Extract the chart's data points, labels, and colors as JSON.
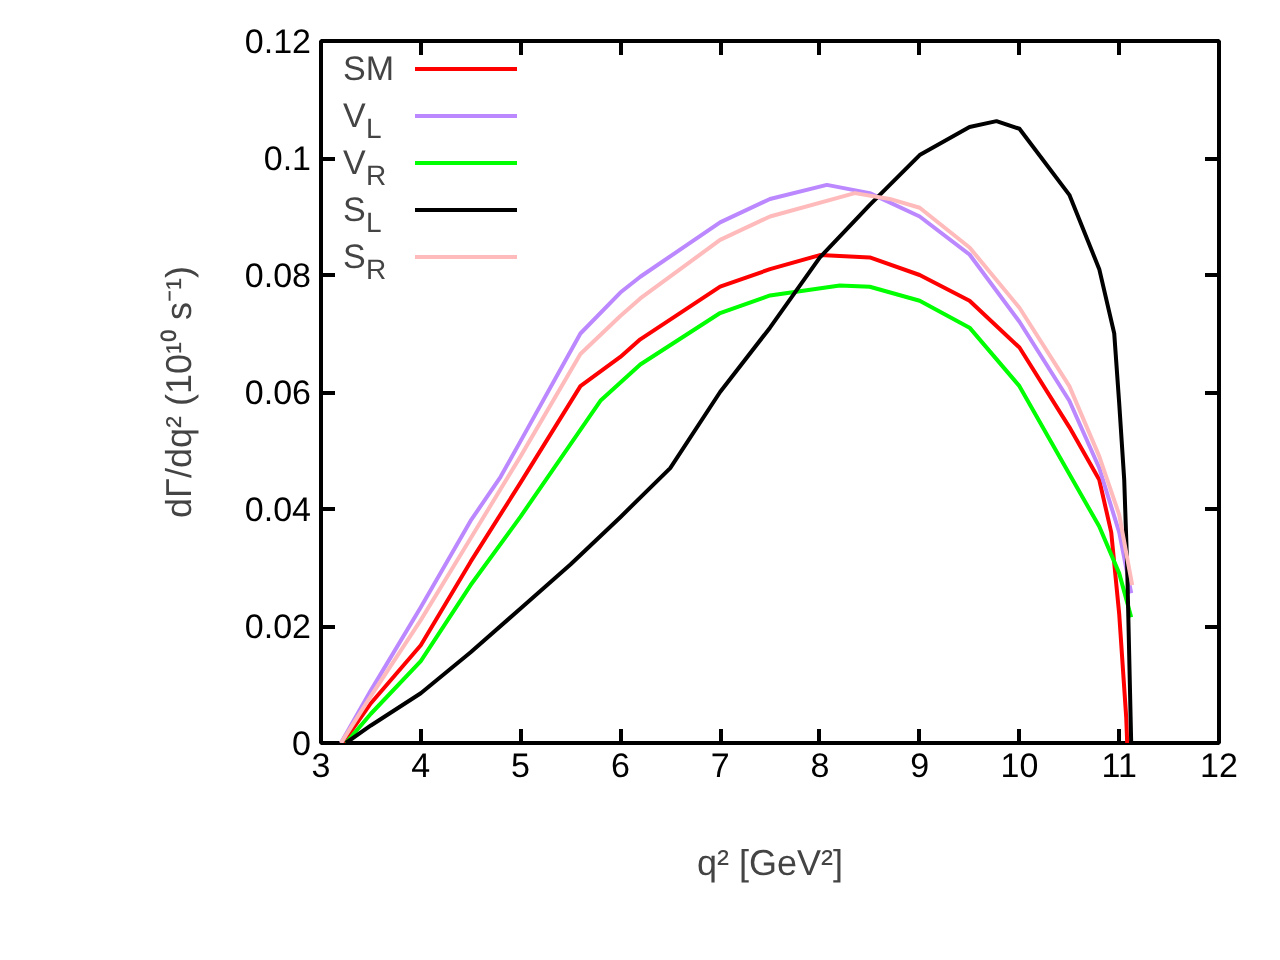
{
  "chart_data": {
    "type": "line",
    "xlabel": "q² [GeV²]",
    "ylabel": "dΓ/dq² (10¹⁰ s⁻¹)",
    "xlim": [
      3,
      12
    ],
    "ylim": [
      0,
      0.12
    ],
    "xticks": [
      3,
      4,
      5,
      6,
      7,
      8,
      9,
      10,
      11,
      12
    ],
    "yticks": [
      0,
      0.02,
      0.04,
      0.06,
      0.08,
      0.1,
      0.12
    ],
    "grid": false,
    "legend": "top left",
    "marker": "none",
    "line_style": "solid",
    "series": [
      {
        "name": "SM",
        "color": "#ff0000",
        "x": [
          3.22,
          3.5,
          4,
          4.5,
          5,
          5.6,
          6,
          6.2,
          7,
          7.5,
          8,
          8.5,
          9,
          9.5,
          10,
          10.5,
          10.8,
          10.92,
          11.0,
          11.07,
          11.08
        ],
        "values": [
          0,
          0.0068,
          0.0167,
          0.031,
          0.0445,
          0.061,
          0.066,
          0.069,
          0.078,
          0.081,
          0.0834,
          0.083,
          0.08,
          0.0756,
          0.0676,
          0.054,
          0.045,
          0.036,
          0.022,
          0.0044,
          0
        ]
      },
      {
        "name": "V$_{L}$",
        "color": "#bb88ff",
        "x": [
          3.2,
          3.5,
          4,
          4.5,
          4.8,
          5,
          5.6,
          6,
          6.2,
          7,
          7.5,
          8.07,
          8.5,
          9,
          9.5,
          10,
          10.5,
          10.8,
          11.0,
          11.12
        ],
        "values": [
          0,
          0.009,
          0.0232,
          0.038,
          0.0455,
          0.0516,
          0.07,
          0.077,
          0.0797,
          0.089,
          0.093,
          0.0954,
          0.094,
          0.09,
          0.0835,
          0.072,
          0.0585,
          0.047,
          0.036,
          0.0256
        ]
      },
      {
        "name": "V$_{R}$",
        "color": "#00ff00",
        "x": [
          3.25,
          3.5,
          4,
          4.5,
          5,
          5.8,
          6.2,
          7,
          7.5,
          8.2,
          8.5,
          9,
          9.5,
          10,
          10.5,
          10.8,
          11.0,
          11.12
        ],
        "values": [
          0,
          0.005,
          0.014,
          0.027,
          0.0387,
          0.0585,
          0.0647,
          0.0735,
          0.0765,
          0.0782,
          0.078,
          0.0756,
          0.071,
          0.061,
          0.046,
          0.037,
          0.029,
          0.0215
        ]
      },
      {
        "name": "S$_{L}$",
        "color": "#000000",
        "x": [
          3.25,
          3.5,
          4,
          4.5,
          5,
          5.5,
          6,
          6.5,
          7,
          7.5,
          8,
          8.5,
          9,
          9.5,
          9.77,
          10,
          10.5,
          10.8,
          10.95,
          11.0,
          11.05,
          11.08,
          11.12
        ],
        "values": [
          0,
          0.003,
          0.0085,
          0.0155,
          0.023,
          0.0305,
          0.0386,
          0.047,
          0.06,
          0.071,
          0.083,
          0.092,
          0.1005,
          0.1053,
          0.1063,
          0.105,
          0.0937,
          0.081,
          0.07,
          0.058,
          0.045,
          0.03,
          0
        ]
      },
      {
        "name": "S$_{R}$",
        "color": "#ffbbbb",
        "x": [
          3.2,
          3.5,
          4,
          4.5,
          5,
          5.6,
          6,
          6.2,
          7,
          7.5,
          8.35,
          8.7,
          9,
          9.5,
          10,
          10.5,
          10.8,
          11.0,
          11.13
        ],
        "values": [
          0,
          0.008,
          0.021,
          0.035,
          0.049,
          0.0665,
          0.073,
          0.076,
          0.086,
          0.09,
          0.094,
          0.093,
          0.0915,
          0.0847,
          0.0744,
          0.061,
          0.049,
          0.039,
          0.027
        ]
      }
    ]
  }
}
